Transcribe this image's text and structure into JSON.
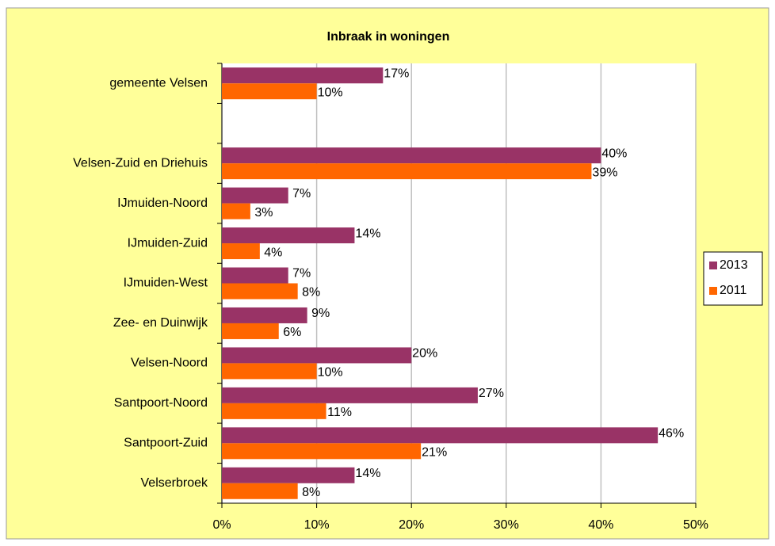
{
  "chart_data": {
    "type": "hbar",
    "title": "Inbraak in woningen",
    "categories": [
      "gemeente Velsen",
      null,
      "Velsen-Zuid en Driehuis",
      "IJmuiden-Noord",
      "IJmuiden-Zuid",
      "IJmuiden-West",
      "Zee- en Duinwijk",
      "Velsen-Noord",
      "Santpoort-Noord",
      "Santpoort-Zuid",
      "Velserbroek"
    ],
    "series": [
      {
        "name": "2013",
        "color": "#993366",
        "values": [
          17,
          null,
          40,
          7,
          14,
          7,
          9,
          20,
          27,
          46,
          14
        ],
        "value_labels": [
          "17%",
          null,
          "40%",
          "7%",
          "14%",
          "7%",
          "9%",
          "20%",
          "27%",
          "46%",
          "14%"
        ]
      },
      {
        "name": "2011",
        "color": "#ff6600",
        "values": [
          10,
          null,
          39,
          3,
          4,
          8,
          6,
          10,
          11,
          21,
          8
        ],
        "value_labels": [
          "10%",
          null,
          "39%",
          "3%",
          "4%",
          "8%",
          "6%",
          "10%",
          "11%",
          "21%",
          "8%"
        ]
      }
    ],
    "xlim": [
      0,
      50
    ],
    "xticks": [
      {
        "value": 0,
        "label": "0%"
      },
      {
        "value": 10,
        "label": "10%"
      },
      {
        "value": 20,
        "label": "20%"
      },
      {
        "value": 30,
        "label": "30%"
      },
      {
        "value": 40,
        "label": "40%"
      },
      {
        "value": 50,
        "label": "50%"
      }
    ],
    "grid": true,
    "legend": "right"
  }
}
